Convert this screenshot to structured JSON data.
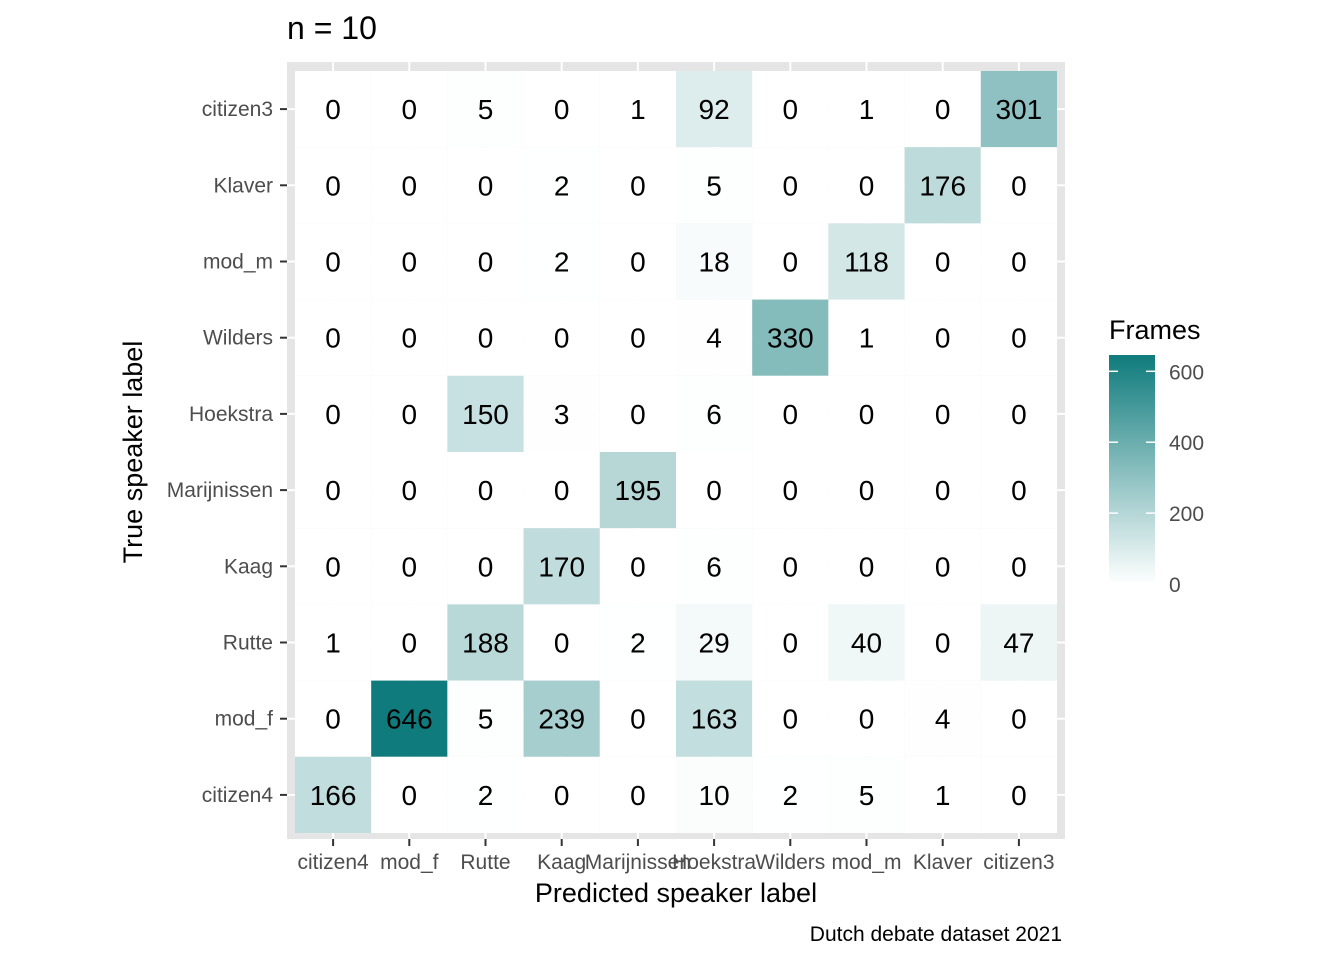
{
  "chart_data": {
    "type": "heatmap",
    "title": "n = 10",
    "xlabel": "Predicted speaker label",
    "ylabel": "True speaker label",
    "caption": "Dutch debate dataset 2021",
    "x_categories": [
      "citizen4",
      "mod_f",
      "Rutte",
      "Kaag",
      "Marijnissen",
      "Hoekstra",
      "Wilders",
      "mod_m",
      "Klaver",
      "citizen3"
    ],
    "y_categories": [
      "citizen3",
      "Klaver",
      "mod_m",
      "Wilders",
      "Hoekstra",
      "Marijnissen",
      "Kaag",
      "Rutte",
      "mod_f",
      "citizen4"
    ],
    "values": [
      [
        0,
        0,
        5,
        0,
        1,
        92,
        0,
        1,
        0,
        301
      ],
      [
        0,
        0,
        0,
        2,
        0,
        5,
        0,
        0,
        176,
        0
      ],
      [
        0,
        0,
        0,
        2,
        0,
        18,
        0,
        118,
        0,
        0
      ],
      [
        0,
        0,
        0,
        0,
        0,
        4,
        330,
        1,
        0,
        0
      ],
      [
        0,
        0,
        150,
        3,
        0,
        6,
        0,
        0,
        0,
        0
      ],
      [
        0,
        0,
        0,
        0,
        195,
        0,
        0,
        0,
        0,
        0
      ],
      [
        0,
        0,
        0,
        170,
        0,
        6,
        0,
        0,
        0,
        0
      ],
      [
        1,
        0,
        188,
        0,
        2,
        29,
        0,
        40,
        0,
        47
      ],
      [
        0,
        646,
        5,
        239,
        0,
        163,
        0,
        0,
        4,
        0
      ],
      [
        166,
        0,
        2,
        0,
        0,
        10,
        2,
        5,
        1,
        0
      ]
    ],
    "legend": {
      "title": "Frames",
      "ticks": [
        0,
        200,
        400,
        600
      ],
      "range": [
        0,
        646
      ],
      "low_color": "#ffffff",
      "high_color": "#0f7b7c"
    },
    "panel_color": "#e5e5e5"
  }
}
